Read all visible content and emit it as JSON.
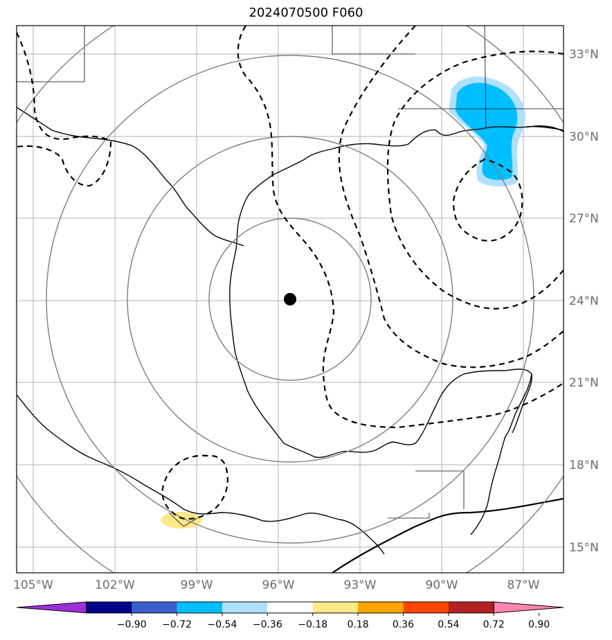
{
  "title": "2024070500 F060",
  "map": {
    "latitude_labels": [
      "33°N",
      "30°N",
      "27°N",
      "24°N",
      "21°N",
      "18°N",
      "15°N"
    ],
    "longitude_labels": [
      "105°W",
      "102°W",
      "99°W",
      "96°W",
      "93°W",
      "90°W",
      "87°W"
    ],
    "storm_center": {
      "lon": -95.6,
      "lat": 24.0
    },
    "range_rings": "concentric circles around storm center",
    "colors": {
      "positive_fill": "#ffe88a",
      "negative_fill": "#00bfff",
      "negative_light": "#b0e0ff"
    }
  },
  "colorbar": {
    "tick_labels": [
      "−0.90",
      "−0.72",
      "−0.54",
      "−0.36",
      "−0.18",
      "0.18",
      "0.36",
      "0.54",
      "0.72",
      "0.90"
    ],
    "colors": [
      "#9b30d9",
      "#00008b",
      "#3a5fcd",
      "#00bfff",
      "#b0e0ff",
      "#ffffff",
      "#ffe88a",
      "#ffa500",
      "#ff4500",
      "#b22222",
      "#ff85b3"
    ]
  }
}
